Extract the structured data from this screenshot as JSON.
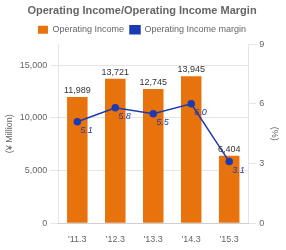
{
  "chart_data": {
    "type": "bar",
    "title": "Operating Income/Operating Income Margin",
    "categories": [
      "'11.3",
      "'12.3",
      "'13.3",
      "'14.3",
      "'15.3"
    ],
    "series": [
      {
        "name": "Operating Income",
        "type": "bar",
        "color": "#E8720C",
        "values": [
          11989,
          13721,
          12745,
          13945,
          6404
        ],
        "value_labels": [
          "11,989",
          "13,721",
          "12,745",
          "13,945",
          "6,404"
        ]
      },
      {
        "name": "Operating Income margin",
        "type": "line",
        "color": "#1C3BB0",
        "marker": "circle",
        "axis": "y2",
        "values": [
          5.1,
          5.8,
          5.5,
          6.0,
          3.1
        ],
        "value_labels": [
          "5.1",
          "5.8",
          "5.5",
          "6.0",
          "3.1"
        ]
      }
    ],
    "ylabel": "(¥ Million)",
    "y2label": "(%)",
    "ylim": [
      0,
      17000
    ],
    "yticks": [
      0,
      {
        "value": 5000,
        "label": "5,000"
      },
      {
        "value": 10000,
        "label": "10,000"
      },
      {
        "value": 15000,
        "label": "15,000"
      }
    ],
    "y2lim": [
      0,
      9
    ],
    "y2ticks": [
      0,
      3,
      6,
      9
    ],
    "grid": true,
    "legend": "top",
    "data_labels": true
  }
}
